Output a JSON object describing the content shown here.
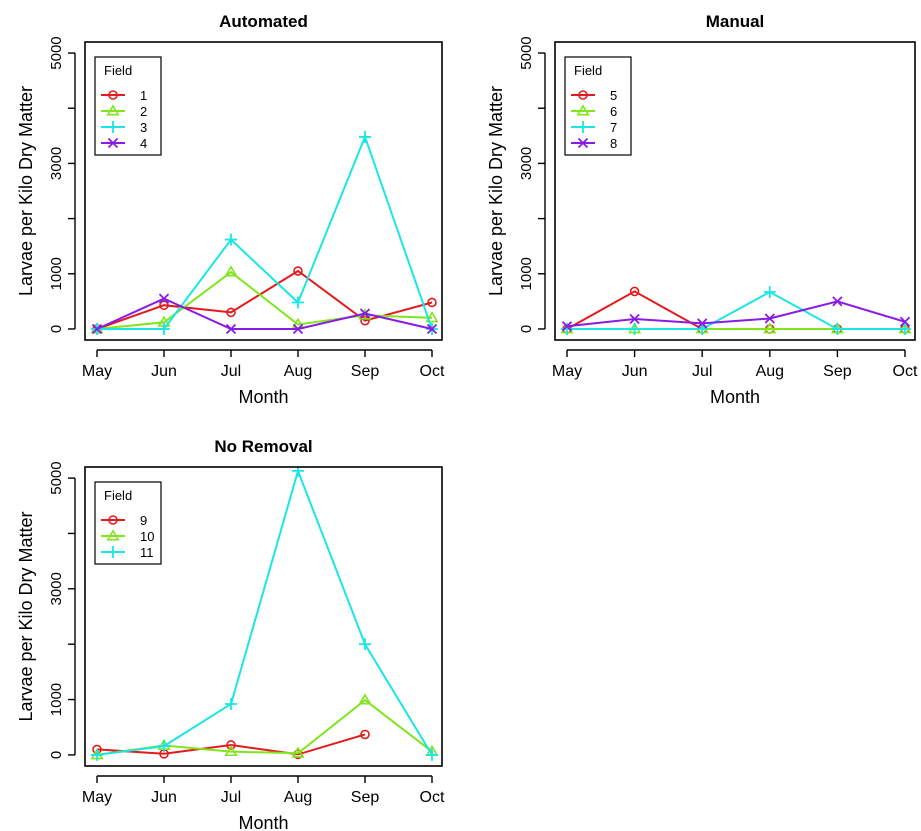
{
  "chart_data": [
    {
      "type": "line",
      "title": "Automated",
      "xlabel": "Month",
      "ylabel": "Larvae per Kilo Dry Matter",
      "categories": [
        "May",
        "Jun",
        "Jul",
        "Aug",
        "Sep",
        "Oct"
      ],
      "yticks": [
        "0",
        "1000",
        "3000",
        "5000"
      ],
      "ylim": [
        -200,
        5200
      ],
      "legend_title": "Field",
      "legend_position": "top-left",
      "grid": false,
      "series": [
        {
          "name": "1",
          "color": "#e41a1c",
          "marker": "circle",
          "values": [
            0,
            430,
            300,
            1050,
            150,
            480
          ]
        },
        {
          "name": "2",
          "color": "#7fe61a",
          "marker": "triangle",
          "values": [
            0,
            120,
            1030,
            80,
            250,
            200
          ]
        },
        {
          "name": "3",
          "color": "#1ae6e6",
          "marker": "plus",
          "values": [
            0,
            0,
            1620,
            480,
            3480,
            0
          ]
        },
        {
          "name": "4",
          "color": "#8a1ae6",
          "marker": "cross",
          "values": [
            0,
            550,
            0,
            0,
            280,
            0
          ]
        }
      ]
    },
    {
      "type": "line",
      "title": "Manual",
      "xlabel": "Month",
      "ylabel": "Larvae per Kilo Dry Matter",
      "categories": [
        "May",
        "Jun",
        "Jul",
        "Aug",
        "Sep",
        "Oct"
      ],
      "yticks": [
        "0",
        "1000",
        "3000",
        "5000"
      ],
      "ylim": [
        -200,
        5200
      ],
      "legend_title": "Field",
      "legend_position": "top-left",
      "grid": false,
      "series": [
        {
          "name": "5",
          "color": "#e41a1c",
          "marker": "circle",
          "values": [
            0,
            680,
            0,
            0,
            0,
            0
          ]
        },
        {
          "name": "6",
          "color": "#7fe61a",
          "marker": "triangle",
          "values": [
            0,
            0,
            0,
            0,
            0,
            0
          ]
        },
        {
          "name": "7",
          "color": "#1ae6e6",
          "marker": "plus",
          "values": [
            0,
            0,
            0,
            670,
            0,
            0
          ]
        },
        {
          "name": "8",
          "color": "#8a1ae6",
          "marker": "cross",
          "values": [
            50,
            180,
            100,
            190,
            500,
            130
          ]
        }
      ]
    },
    {
      "type": "line",
      "title": "No Removal",
      "xlabel": "Month",
      "ylabel": "Larvae per Kilo Dry Matter",
      "categories": [
        "May",
        "Jun",
        "Jul",
        "Aug",
        "Sep",
        "Oct"
      ],
      "yticks": [
        "0",
        "1000",
        "3000",
        "5000"
      ],
      "ylim": [
        -200,
        5200
      ],
      "legend_title": "Field",
      "legend_position": "top-left",
      "grid": false,
      "series": [
        {
          "name": "9",
          "color": "#e41a1c",
          "marker": "circle",
          "values": [
            100,
            20,
            180,
            10,
            370,
            null
          ]
        },
        {
          "name": "10",
          "color": "#7fe61a",
          "marker": "triangle",
          "values": [
            0,
            170,
            60,
            30,
            990,
            60
          ]
        },
        {
          "name": "11",
          "color": "#1ae6e6",
          "marker": "plus",
          "values": [
            0,
            160,
            920,
            5130,
            2000,
            0
          ]
        }
      ]
    }
  ]
}
